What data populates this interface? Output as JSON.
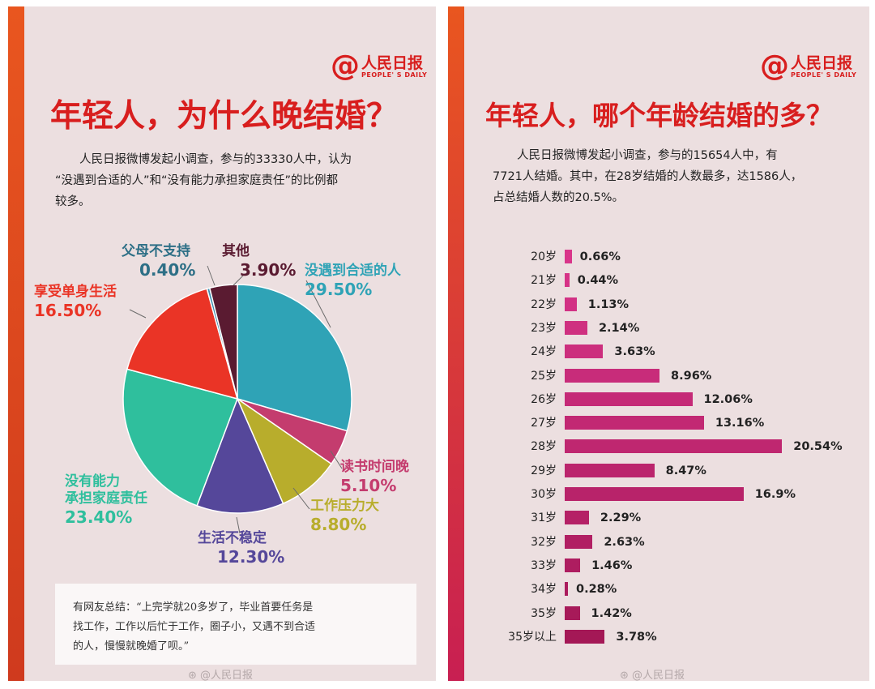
{
  "logo": {
    "at": "@",
    "name": "人民日报",
    "en": "PEOPLE' S DAILY"
  },
  "left": {
    "title": "年轻人，为什么晚结婚？",
    "intro": [
      "人民日报微博发起小调查，参与的33330人中，认为",
      "“没遇到合适的人”和“没有能力承担家庭责任”的比例都",
      "较多。"
    ],
    "quote": [
      "有网友总结：“上完学就20多岁了，毕业首要任务是",
      "找工作，工作以后忙于工作，圈子小，又遇不到合适",
      "的人，慢慢就晚婚了呗。”"
    ],
    "watermark": "⊛ @人民日报"
  },
  "right": {
    "title": "年轻人，哪个年龄结婚的多？",
    "intro": [
      "人民日报微博发起小调查，参与的15654人中，有",
      "7721人结婚。其中，在28岁结婚的人数最多，达1586人，",
      "占总结婚人数的20.5%。"
    ],
    "watermark": "⊛ @人民日报"
  },
  "chart_data": [
    {
      "type": "pie",
      "title": "年轻人，为什么晚结婚？",
      "slices": [
        {
          "name": "没遇到合适的人",
          "label": "没遇到合适的人",
          "value": 29.5,
          "display": "29.50%",
          "color": "#2fa3b6"
        },
        {
          "name": "读书时间晚",
          "label": "读书时间晚",
          "value": 5.1,
          "display": "5.10%",
          "color": "#c43c6e"
        },
        {
          "name": "工作压力大",
          "label": "工作压力大",
          "value": 8.8,
          "display": "8.80%",
          "color": "#b8ad2c"
        },
        {
          "name": "生活不稳定",
          "label": "生活不稳定",
          "value": 12.3,
          "display": "12.30%",
          "color": "#55479a"
        },
        {
          "name": "没有能力承担家庭责任",
          "label": "没有能力\n承担家庭责任",
          "value": 23.4,
          "display": "23.40%",
          "color": "#2fbf9d"
        },
        {
          "name": "享受单身生活",
          "label": "享受单身生活",
          "value": 16.5,
          "display": "16.50%",
          "color": "#ea3426"
        },
        {
          "name": "父母不支持",
          "label": "父母不支持",
          "value": 0.4,
          "display": "0.40%",
          "color": "#3f8fb0"
        },
        {
          "name": "其他",
          "label": "其他",
          "value": 3.9,
          "display": "3.90%",
          "color": "#5a1b31"
        }
      ]
    },
    {
      "type": "bar",
      "orientation": "horizontal",
      "title": "年轻人，哪个年龄结婚的多？",
      "categories": [
        "20岁",
        "21岁",
        "22岁",
        "23岁",
        "24岁",
        "25岁",
        "26岁",
        "27岁",
        "28岁",
        "29岁",
        "30岁",
        "31岁",
        "32岁",
        "33岁",
        "34岁",
        "35岁",
        "35岁以上"
      ],
      "values": [
        0.66,
        0.44,
        1.13,
        2.14,
        3.63,
        8.96,
        12.06,
        13.16,
        20.54,
        8.47,
        16.9,
        2.29,
        2.63,
        1.46,
        0.28,
        1.42,
        3.78
      ],
      "labels": [
        "0.66%",
        "0.44%",
        "1.13%",
        "2.14%",
        "3.63%",
        "8.96%",
        "12.06%",
        "13.16%",
        "20.54%",
        "8.47%",
        "16.9%",
        "2.29%",
        "2.63%",
        "1.46%",
        "0.28%",
        "1.42%",
        "3.78%"
      ],
      "colors": {
        "start": "#d9358a",
        "end": "#a41856"
      }
    }
  ]
}
